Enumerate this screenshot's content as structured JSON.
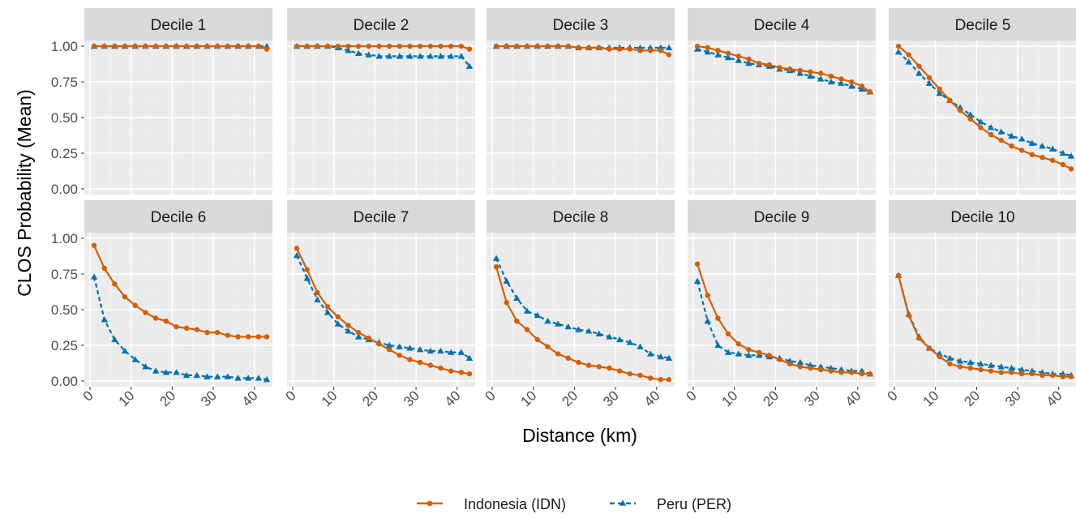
{
  "chart_data": {
    "type": "line",
    "layout": "facet-grid 2x5",
    "xlabel": "Distance (km)",
    "ylabel": "CLOS Probability (Mean)",
    "xlim": [
      0,
      43
    ],
    "ylim": [
      0,
      1
    ],
    "x_ticks": [
      0,
      10,
      20,
      30,
      40
    ],
    "y_ticks": [
      0,
      0.25,
      0.5,
      0.75,
      1.0
    ],
    "y_tick_labels": [
      "0.00",
      "0.25",
      "0.50",
      "0.75",
      "1.00"
    ],
    "grid": true,
    "legend_position": "bottom",
    "x": [
      1,
      3.5,
      6,
      8.5,
      11,
      13.5,
      16,
      18.5,
      21,
      23.5,
      26,
      28.5,
      31,
      33.5,
      36,
      38.5,
      41,
      43
    ],
    "series": [
      {
        "name": "Indonesia (IDN)",
        "color": "#d55e00",
        "line": "solid",
        "marker": "circle"
      },
      {
        "name": "Peru (PER)",
        "color": "#0072b2",
        "line": "dashed",
        "marker": "triangle"
      }
    ],
    "panels": [
      {
        "title": "Decile 1",
        "values": [
          [
            1,
            1,
            1,
            1,
            1,
            1,
            1,
            1,
            1,
            1,
            1,
            1,
            1,
            1,
            1,
            1,
            1,
            0.98
          ],
          [
            1,
            1,
            1,
            1,
            1,
            1,
            1,
            1,
            1,
            1,
            1,
            1,
            1,
            1,
            1,
            1,
            1,
            1
          ]
        ]
      },
      {
        "title": "Decile 2",
        "values": [
          [
            1,
            1,
            1,
            1,
            1,
            1,
            1,
            1,
            1,
            1,
            1,
            1,
            1,
            1,
            1,
            1,
            1,
            0.98
          ],
          [
            1,
            1,
            1,
            1,
            0.99,
            0.97,
            0.95,
            0.94,
            0.93,
            0.93,
            0.93,
            0.93,
            0.93,
            0.93,
            0.93,
            0.93,
            0.93,
            0.86
          ]
        ]
      },
      {
        "title": "Decile 3",
        "values": [
          [
            1,
            1,
            1,
            1,
            1,
            1,
            1,
            1,
            0.99,
            0.99,
            0.99,
            0.98,
            0.98,
            0.98,
            0.97,
            0.97,
            0.97,
            0.94
          ],
          [
            1,
            1,
            1,
            1,
            1,
            1,
            1,
            1,
            0.99,
            0.99,
            0.99,
            0.99,
            0.99,
            0.99,
            0.99,
            0.99,
            0.99,
            0.99
          ]
        ]
      },
      {
        "title": "Decile 4",
        "values": [
          [
            1,
            0.99,
            0.97,
            0.95,
            0.93,
            0.91,
            0.88,
            0.87,
            0.85,
            0.84,
            0.83,
            0.82,
            0.81,
            0.79,
            0.77,
            0.75,
            0.72,
            0.68
          ],
          [
            0.98,
            0.96,
            0.94,
            0.92,
            0.9,
            0.88,
            0.87,
            0.86,
            0.84,
            0.83,
            0.81,
            0.79,
            0.77,
            0.75,
            0.74,
            0.72,
            0.7,
            0.68
          ]
        ]
      },
      {
        "title": "Decile 5",
        "values": [
          [
            1,
            0.94,
            0.86,
            0.78,
            0.7,
            0.62,
            0.55,
            0.49,
            0.43,
            0.38,
            0.34,
            0.3,
            0.27,
            0.24,
            0.22,
            0.2,
            0.17,
            0.14
          ],
          [
            0.96,
            0.89,
            0.81,
            0.74,
            0.67,
            0.62,
            0.57,
            0.52,
            0.47,
            0.43,
            0.4,
            0.37,
            0.35,
            0.32,
            0.3,
            0.28,
            0.25,
            0.23
          ]
        ]
      },
      {
        "title": "Decile 6",
        "values": [
          [
            0.95,
            0.79,
            0.68,
            0.59,
            0.53,
            0.48,
            0.44,
            0.42,
            0.38,
            0.37,
            0.36,
            0.34,
            0.34,
            0.32,
            0.31,
            0.31,
            0.31,
            0.31
          ],
          [
            0.73,
            0.43,
            0.29,
            0.21,
            0.15,
            0.1,
            0.07,
            0.06,
            0.06,
            0.04,
            0.04,
            0.03,
            0.03,
            0.03,
            0.02,
            0.02,
            0.02,
            0.01
          ]
        ]
      },
      {
        "title": "Decile 7",
        "values": [
          [
            0.93,
            0.78,
            0.62,
            0.52,
            0.45,
            0.39,
            0.34,
            0.3,
            0.26,
            0.22,
            0.18,
            0.15,
            0.13,
            0.11,
            0.09,
            0.07,
            0.06,
            0.05
          ],
          [
            0.88,
            0.72,
            0.57,
            0.48,
            0.4,
            0.35,
            0.31,
            0.29,
            0.27,
            0.25,
            0.24,
            0.23,
            0.22,
            0.21,
            0.21,
            0.2,
            0.2,
            0.16
          ]
        ]
      },
      {
        "title": "Decile 8",
        "values": [
          [
            0.8,
            0.55,
            0.42,
            0.36,
            0.29,
            0.24,
            0.19,
            0.16,
            0.13,
            0.11,
            0.1,
            0.09,
            0.07,
            0.05,
            0.04,
            0.02,
            0.01,
            0.01
          ],
          [
            0.86,
            0.7,
            0.58,
            0.49,
            0.46,
            0.42,
            0.4,
            0.38,
            0.36,
            0.35,
            0.33,
            0.31,
            0.29,
            0.27,
            0.24,
            0.19,
            0.17,
            0.16
          ]
        ]
      },
      {
        "title": "Decile 9",
        "values": [
          [
            0.82,
            0.6,
            0.44,
            0.33,
            0.26,
            0.22,
            0.2,
            0.18,
            0.15,
            0.12,
            0.1,
            0.09,
            0.08,
            0.07,
            0.06,
            0.06,
            0.05,
            0.05
          ],
          [
            0.7,
            0.42,
            0.25,
            0.2,
            0.19,
            0.18,
            0.18,
            0.17,
            0.16,
            0.14,
            0.13,
            0.11,
            0.1,
            0.09,
            0.08,
            0.07,
            0.07,
            0.05
          ]
        ]
      },
      {
        "title": "Decile 10",
        "values": [
          [
            0.74,
            0.46,
            0.3,
            0.23,
            0.17,
            0.12,
            0.1,
            0.09,
            0.08,
            0.07,
            0.06,
            0.06,
            0.05,
            0.05,
            0.04,
            0.04,
            0.03,
            0.03
          ],
          [
            0.74,
            0.47,
            0.31,
            0.23,
            0.19,
            0.16,
            0.14,
            0.13,
            0.12,
            0.11,
            0.1,
            0.09,
            0.08,
            0.07,
            0.06,
            0.05,
            0.05,
            0.04
          ]
        ]
      }
    ]
  }
}
